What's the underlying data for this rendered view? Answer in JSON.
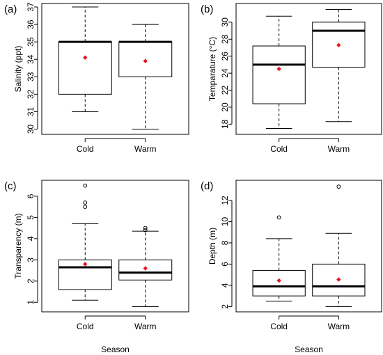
{
  "chart_data": [
    {
      "type": "boxplot",
      "panel_label": "(a)",
      "xlabel": "",
      "ylabel": "Salinity (ppt)",
      "categories": [
        "Cold",
        "Warm"
      ],
      "ylim": [
        29.7,
        37.2
      ],
      "yticks": [
        30,
        31,
        32,
        33,
        34,
        35,
        36,
        37
      ],
      "boxes": [
        {
          "whisker_low": 31.0,
          "q1": 32.0,
          "median": 35.0,
          "q3": 35.0,
          "whisker_high": 37.0,
          "mean": 34.1,
          "outliers": []
        },
        {
          "whisker_low": 30.0,
          "q1": 33.0,
          "median": 35.0,
          "q3": 35.0,
          "whisker_high": 36.0,
          "mean": 33.9,
          "outliers": []
        }
      ]
    },
    {
      "type": "boxplot",
      "panel_label": "(b)",
      "xlabel": "",
      "ylabel": "Temparature (°C)",
      "categories": [
        "Cold",
        "Warm"
      ],
      "ylim": [
        16.8,
        32.2
      ],
      "yticks": [
        18,
        20,
        22,
        24,
        26,
        28,
        30
      ],
      "boxes": [
        {
          "whisker_low": 17.5,
          "q1": 20.4,
          "median": 25.0,
          "q3": 27.2,
          "whisker_high": 30.7,
          "mean": 24.5,
          "outliers": []
        },
        {
          "whisker_low": 18.3,
          "q1": 24.7,
          "median": 29.0,
          "q3": 30.0,
          "whisker_high": 31.5,
          "mean": 27.3,
          "outliers": []
        }
      ]
    },
    {
      "type": "boxplot",
      "panel_label": "(c)",
      "xlabel": "Season",
      "ylabel": "Transparency (m)",
      "categories": [
        "Cold",
        "Warm"
      ],
      "ylim": [
        0.55,
        6.75
      ],
      "yticks": [
        1,
        2,
        3,
        4,
        5,
        6
      ],
      "boxes": [
        {
          "whisker_low": 1.1,
          "q1": 1.6,
          "median": 2.65,
          "q3": 3.0,
          "whisker_high": 4.7,
          "mean": 2.8,
          "outliers": [
            5.5,
            5.7,
            6.5
          ]
        },
        {
          "whisker_low": 0.8,
          "q1": 2.05,
          "median": 2.4,
          "q3": 3.0,
          "whisker_high": 4.35,
          "mean": 2.6,
          "outliers": [
            4.4,
            4.5
          ]
        }
      ]
    },
    {
      "type": "boxplot",
      "panel_label": "(d)",
      "xlabel": "Season",
      "ylabel": "Depth (m)",
      "categories": [
        "Cold",
        "Warm"
      ],
      "ylim": [
        1.5,
        13.9
      ],
      "yticks": [
        2,
        4,
        6,
        8,
        10,
        12
      ],
      "boxes": [
        {
          "whisker_low": 2.5,
          "q1": 3.0,
          "median": 3.9,
          "q3": 5.4,
          "whisker_high": 8.4,
          "mean": 4.45,
          "outliers": [
            10.4
          ]
        },
        {
          "whisker_low": 2.0,
          "q1": 3.0,
          "median": 3.9,
          "q3": 6.0,
          "whisker_high": 8.9,
          "mean": 4.55,
          "outliers": [
            13.3
          ]
        }
      ]
    }
  ],
  "colors": {
    "mean_marker": "#e8141e",
    "axis": "#000000",
    "background": "#ffffff"
  }
}
